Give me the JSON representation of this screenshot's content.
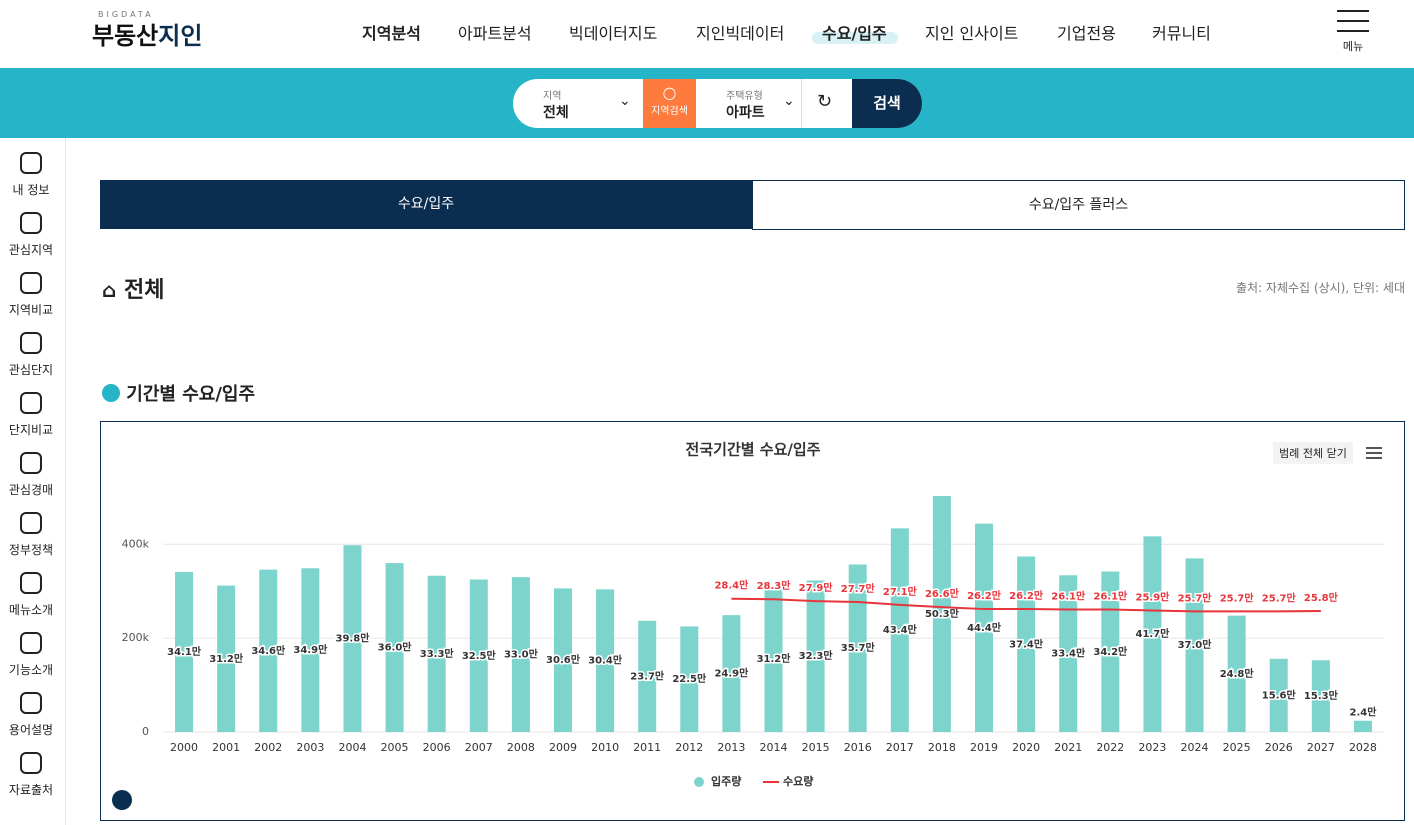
{
  "header": {
    "logo_small": "BIGDATA",
    "logo_main": "부동산",
    "logo_accent": "지인",
    "nav": [
      "지역분석",
      "아파트분석",
      "빅데이터지도",
      "지인빅데이터",
      "수요/입주",
      "지인 인사이트",
      "기업전용",
      "커뮤니티"
    ],
    "menu": "메뉴"
  },
  "search": {
    "region_label": "지역",
    "region_value": "전체",
    "region_button": "지역검색",
    "type_label": "주택유형",
    "type_value": "아파트",
    "submit": "검색"
  },
  "sidebar": [
    "내 정보",
    "관심지역",
    "지역비교",
    "관심단지",
    "단지비교",
    "관심경매",
    "정부정책",
    "메뉴소개",
    "기능소개",
    "용어설명",
    "자료출처"
  ],
  "tabs": [
    "수요/입주",
    "수요/입주 플러스"
  ],
  "section_title": "전체",
  "source": "출처: 자체수집 (상시), 단위: 세대",
  "subsection_title": "기간별 수요/입주",
  "legend_toggle": "범례 전체 닫기",
  "chart_data": {
    "type": "bar",
    "title": "전국기간별 수요/입주",
    "categories": [
      "2000",
      "2001",
      "2002",
      "2003",
      "2004",
      "2005",
      "2006",
      "2007",
      "2008",
      "2009",
      "2010",
      "2011",
      "2012",
      "2013",
      "2014",
      "2015",
      "2016",
      "2017",
      "2018",
      "2019",
      "2020",
      "2021",
      "2022",
      "2023",
      "2024",
      "2025",
      "2026",
      "2027",
      "2028"
    ],
    "series": [
      {
        "name": "입주량",
        "type": "bar",
        "color": "#7dd4cd",
        "values": [
          341000,
          312000,
          346000,
          349000,
          398000,
          360000,
          333000,
          325000,
          330000,
          306000,
          304000,
          237000,
          225000,
          249000,
          312000,
          323000,
          357000,
          434000,
          503000,
          444000,
          374000,
          334000,
          342000,
          417000,
          370000,
          248000,
          156000,
          153000,
          24000
        ],
        "value_labels": [
          "34.1만",
          "31.2만",
          "34.6만",
          "34.9만",
          "39.8만",
          "36.0만",
          "33.3만",
          "32.5만",
          "33.0만",
          "30.6만",
          "30.4만",
          "23.7만",
          "22.5만",
          "24.9만",
          "31.2만",
          "32.3만",
          "35.7만",
          "43.4만",
          "50.3만",
          "44.4만",
          "37.4만",
          "33.4만",
          "34.2만",
          "41.7만",
          "37.0만",
          "24.8만",
          "15.6만",
          "15.3만",
          "2.4만"
        ]
      },
      {
        "name": "수요량",
        "type": "line",
        "color": "#e8353b",
        "values": [
          null,
          null,
          null,
          null,
          null,
          null,
          null,
          null,
          null,
          null,
          null,
          null,
          null,
          284000,
          283000,
          279000,
          277000,
          271000,
          266000,
          262000,
          262000,
          261000,
          261000,
          259000,
          257000,
          257000,
          257000,
          258000,
          null
        ],
        "value_labels": [
          null,
          null,
          null,
          null,
          null,
          null,
          null,
          null,
          null,
          null,
          null,
          null,
          null,
          "28.4만",
          "28.3만",
          "27.9만",
          "27.7만",
          "27.1만",
          "26.6만",
          "26.2만",
          "26.2만",
          "26.1만",
          "26.1만",
          "25.9만",
          "25.7만",
          "25.7만",
          "25.7만",
          "25.8만",
          null
        ]
      }
    ],
    "ylim": [
      0,
      520000
    ],
    "yticks": [
      0,
      {
        "value": 200000,
        "label": "200k"
      },
      {
        "value": 400000,
        "label": "400k"
      }
    ],
    "grid": true
  }
}
